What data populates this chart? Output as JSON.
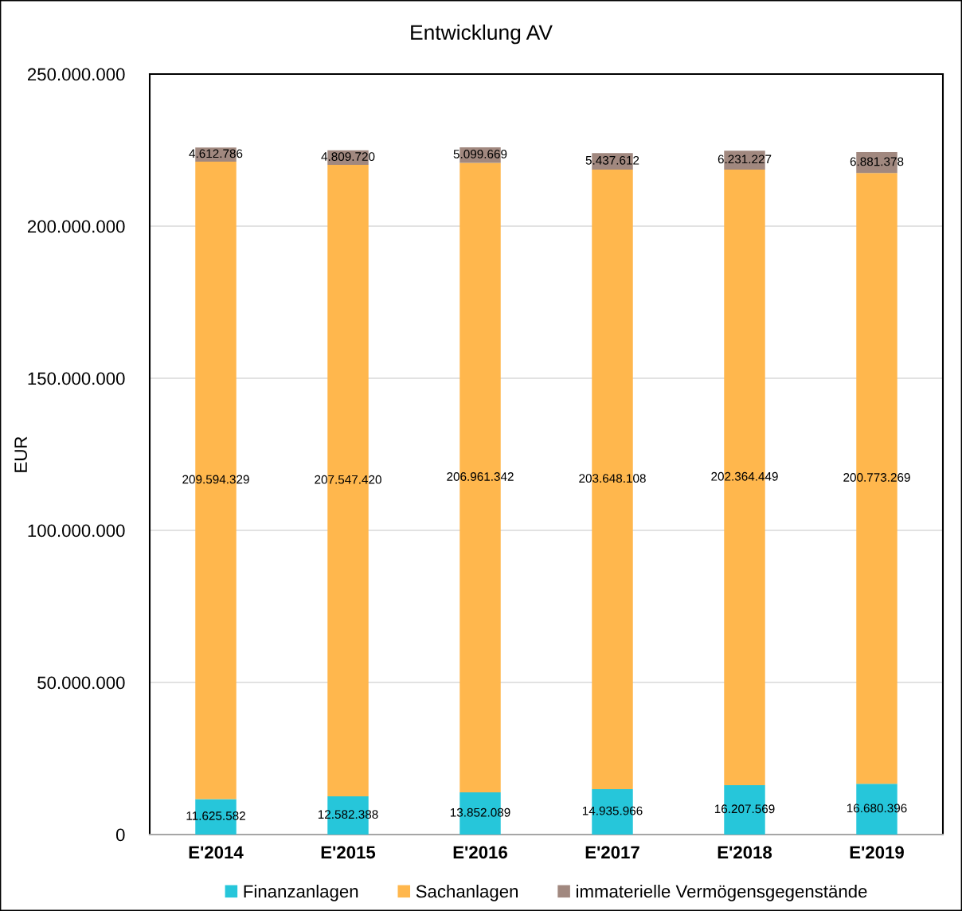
{
  "chart_data": {
    "type": "bar",
    "title": "Entwicklung AV",
    "ylabel": "EUR",
    "stacked": true,
    "categories": [
      "E'2014",
      "E'2015",
      "E'2016",
      "E'2017",
      "E'2018",
      "E'2019"
    ],
    "series": [
      {
        "name": "Finanzanlagen",
        "color": "#26c6da",
        "values": [
          11625582,
          12582388,
          13852089,
          14935966,
          16207569,
          16680396
        ],
        "value_labels": [
          "11.625.582",
          "12.582.388",
          "13.852.089",
          "14.935.966",
          "16.207.569",
          "16.680.396"
        ]
      },
      {
        "name": "Sachanlagen",
        "color": "#ffb74d",
        "values": [
          209594329,
          207547420,
          206961342,
          203648108,
          202364449,
          200773269
        ],
        "value_labels": [
          "209.594.329",
          "207.547.420",
          "206.961.342",
          "203.648.108",
          "202.364.449",
          "200.773.269"
        ]
      },
      {
        "name": "immaterielle Vermögensgegenstände",
        "color": "#a1887f",
        "values": [
          4612786,
          4809720,
          5099669,
          5437612,
          6231227,
          6881378
        ],
        "value_labels": [
          "4.612.786",
          "4.809.720",
          "5.099.669",
          "5.437.612",
          "6.231.227",
          "6.881.378"
        ]
      }
    ],
    "ylim": [
      0,
      250000000
    ],
    "yticks": [
      0,
      {
        "value": 50000000,
        "label": "50.000.000"
      },
      {
        "value": 100000000,
        "label": "100.000.000"
      },
      {
        "value": 150000000,
        "label": "150.000.000"
      },
      {
        "value": 200000000,
        "label": "200.000.000"
      },
      {
        "value": 250000000,
        "label": "250.000.000"
      }
    ],
    "grid": "y",
    "legend": "bottom"
  }
}
